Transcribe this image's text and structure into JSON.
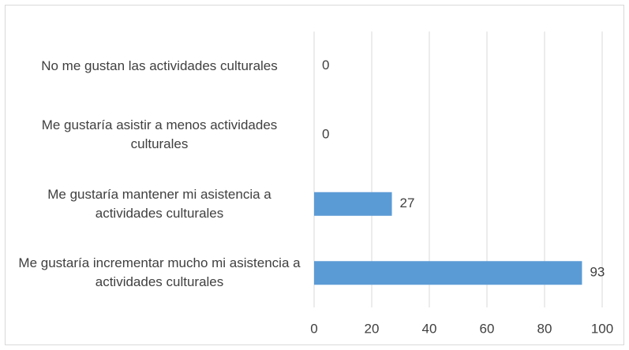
{
  "chart_data": {
    "type": "bar",
    "orientation": "horizontal",
    "categories": [
      "No me gustan las actividades culturales",
      "Me gustaría asistir a menos actividades culturales",
      "Me gustaría mantener mi asistencia a actividades culturales",
      "Me gustaría incrementar mucho mi asistencia a actividades culturales"
    ],
    "values": [
      0,
      0,
      27,
      93
    ],
    "color": "#5b9bd5",
    "xlim": [
      0,
      100
    ],
    "xticks": [
      0,
      20,
      40,
      60,
      80,
      100
    ],
    "grid": true
  }
}
